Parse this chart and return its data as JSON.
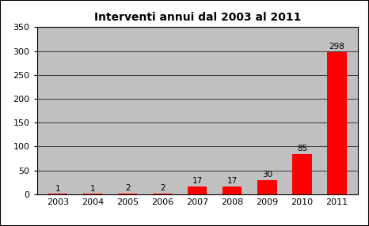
{
  "title": "Interventi annui dal 2003 al 2011",
  "categories": [
    "2003",
    "2004",
    "2005",
    "2006",
    "2007",
    "2008",
    "2009",
    "2010",
    "2011"
  ],
  "values": [
    1,
    1,
    2,
    2,
    17,
    17,
    30,
    85,
    298
  ],
  "bar_color": "#ff0000",
  "plot_bg_color": "#c0c0c0",
  "figure_bg_color": "#ffffff",
  "grid_color": "#000000",
  "ylim": [
    0,
    350
  ],
  "yticks": [
    0,
    50,
    100,
    150,
    200,
    250,
    300,
    350
  ],
  "title_fontsize": 10,
  "label_fontsize": 7.5,
  "tick_fontsize": 8,
  "bar_width": 0.55
}
